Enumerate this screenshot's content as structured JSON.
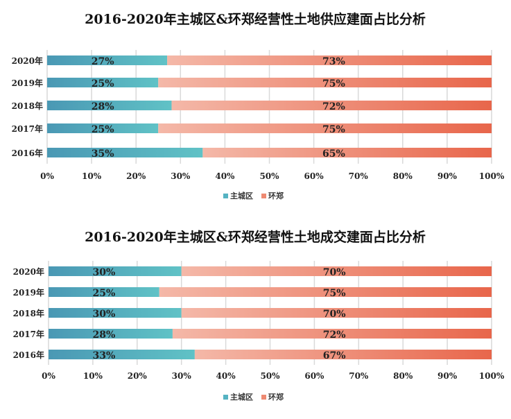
{
  "colors": {
    "main_city": "#55b3c2",
    "ring": "#ee8a72"
  },
  "chart_data": [
    {
      "type": "bar",
      "stacked": true,
      "orientation": "horizontal",
      "title": "2016-2020年主城区&环郑经营性土地供应建面占比分析",
      "categories": [
        "2020年",
        "2019年",
        "2018年",
        "2017年",
        "2016年"
      ],
      "series": [
        {
          "name": "主城区",
          "values": [
            27,
            25,
            28,
            25,
            35
          ],
          "labels": [
            "27%",
            "25%",
            "28%",
            "25%",
            "35%"
          ]
        },
        {
          "name": "环郑",
          "values": [
            73,
            75,
            72,
            75,
            65
          ],
          "labels": [
            "73%",
            "75%",
            "72%",
            "75%",
            "65%"
          ]
        }
      ],
      "xlim": [
        0,
        100
      ],
      "xticks": [
        "0%",
        "10%",
        "20%",
        "30%",
        "40%",
        "50%",
        "60%",
        "70%",
        "80%",
        "90%",
        "100%"
      ],
      "grid": true,
      "legend": "bottom"
    },
    {
      "type": "bar",
      "stacked": true,
      "orientation": "horizontal",
      "title": "2016-2020年主城区&环郑经营性土地成交建面占比分析",
      "categories": [
        "2020年",
        "2019年",
        "2018年",
        "2017年",
        "2016年"
      ],
      "series": [
        {
          "name": "主城区",
          "values": [
            30,
            25,
            30,
            28,
            33
          ],
          "labels": [
            "30%",
            "25%",
            "30%",
            "28%",
            "33%"
          ]
        },
        {
          "name": "环郑",
          "values": [
            70,
            75,
            70,
            72,
            67
          ],
          "labels": [
            "70%",
            "75%",
            "70%",
            "72%",
            "67%"
          ]
        }
      ],
      "xlim": [
        0,
        100
      ],
      "xticks": [
        "0%",
        "10%",
        "20%",
        "30%",
        "40%",
        "50%",
        "60%",
        "70%",
        "80%",
        "90%",
        "100%"
      ],
      "grid": true,
      "legend": "bottom"
    }
  ]
}
